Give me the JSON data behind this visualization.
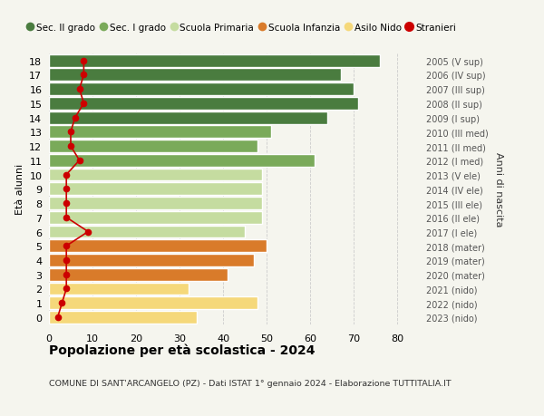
{
  "ages": [
    18,
    17,
    16,
    15,
    14,
    13,
    12,
    11,
    10,
    9,
    8,
    7,
    6,
    5,
    4,
    3,
    2,
    1,
    0
  ],
  "bar_values": [
    76,
    67,
    70,
    71,
    64,
    51,
    48,
    61,
    49,
    49,
    49,
    49,
    45,
    50,
    47,
    41,
    32,
    48,
    34
  ],
  "stranieri": [
    8,
    8,
    7,
    8,
    6,
    5,
    5,
    7,
    4,
    4,
    4,
    4,
    9,
    4,
    4,
    4,
    4,
    3,
    2
  ],
  "right_labels": [
    "2005 (V sup)",
    "2006 (IV sup)",
    "2007 (III sup)",
    "2008 (II sup)",
    "2009 (I sup)",
    "2010 (III med)",
    "2011 (II med)",
    "2012 (I med)",
    "2013 (V ele)",
    "2014 (IV ele)",
    "2015 (III ele)",
    "2016 (II ele)",
    "2017 (I ele)",
    "2018 (mater)",
    "2019 (mater)",
    "2020 (mater)",
    "2021 (nido)",
    "2022 (nido)",
    "2023 (nido)"
  ],
  "bar_colors": [
    "#4a7c3f",
    "#4a7c3f",
    "#4a7c3f",
    "#4a7c3f",
    "#4a7c3f",
    "#7aaa5a",
    "#7aaa5a",
    "#7aaa5a",
    "#c5dca0",
    "#c5dca0",
    "#c5dca0",
    "#c5dca0",
    "#c5dca0",
    "#d97b2a",
    "#d97b2a",
    "#d97b2a",
    "#f5d87a",
    "#f5d87a",
    "#f5d87a"
  ],
  "legend_labels": [
    "Sec. II grado",
    "Sec. I grado",
    "Scuola Primaria",
    "Scuola Infanzia",
    "Asilo Nido",
    "Stranieri"
  ],
  "legend_colors": [
    "#4a7c3f",
    "#7aaa5a",
    "#c5dca0",
    "#d97b2a",
    "#f5d87a",
    "#cc0000"
  ],
  "ylabel": "Età alunni",
  "right_ylabel": "Anni di nascita",
  "title": "Popolazione per età scolastica - 2024",
  "subtitle": "COMUNE DI SANT'ARCANGELO (PZ) - Dati ISTAT 1° gennaio 2024 - Elaborazione TUTTITALIA.IT",
  "xlim": [
    0,
    85
  ],
  "xticks": [
    0,
    10,
    20,
    30,
    40,
    50,
    60,
    70,
    80
  ],
  "stranieri_color": "#cc0000",
  "bg_color": "#f5f5ee",
  "bar_edge_color": "white"
}
